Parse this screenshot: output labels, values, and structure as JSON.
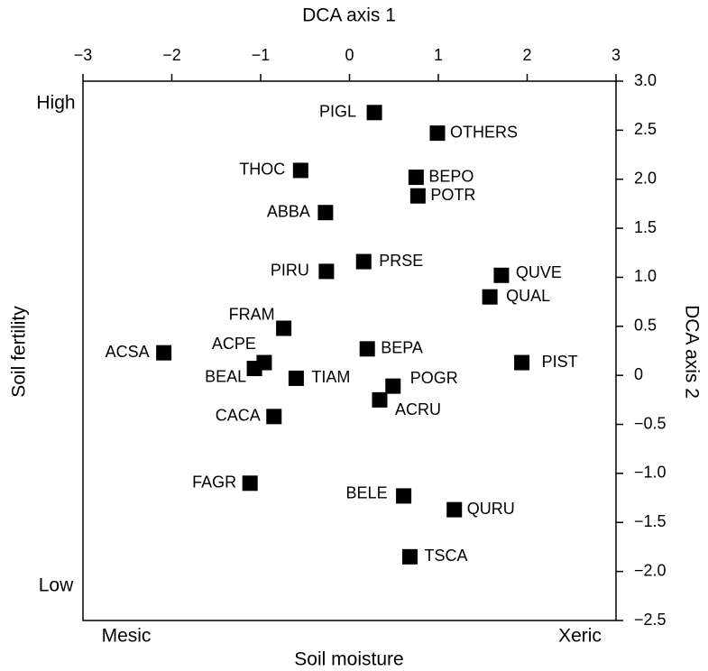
{
  "chart_data": {
    "type": "scatter",
    "top_axis_label": "DCA axis 1",
    "right_axis_label": "DCA axis 2",
    "left_axis_label": "Soil fertility",
    "bottom_axis_label": "Soil moisture",
    "left_top_annotation": "High",
    "left_bottom_annotation": "Low",
    "bottom_left_annotation": "Mesic",
    "bottom_right_annotation": "Xeric",
    "color": "#000000",
    "labels": [
      "PIGL",
      "OTHERS",
      "THOC",
      "BEPO",
      "POTR",
      "ABBA",
      "PRSE",
      "PIRU",
      "QUVE",
      "QUAL",
      "FRAM",
      "BEPA",
      "ACSA",
      "ACPE",
      "PIST",
      "BEAL",
      "TIAM",
      "POGR",
      "ACRU",
      "CACA",
      "FAGR",
      "BELE",
      "QURU",
      "TSCA"
    ],
    "x": [
      0.28,
      0.99,
      -0.55,
      0.75,
      0.77,
      -0.27,
      0.16,
      -0.26,
      1.71,
      1.58,
      -0.74,
      0.2,
      -2.09,
      -0.96,
      1.94,
      -1.07,
      -0.6,
      0.49,
      0.34,
      -0.85,
      -1.12,
      0.61,
      1.18,
      0.68
    ],
    "values": [
      2.68,
      2.47,
      2.09,
      2.02,
      1.83,
      1.66,
      1.16,
      1.06,
      1.02,
      0.8,
      0.48,
      0.27,
      0.23,
      0.13,
      0.13,
      0.07,
      -0.03,
      -0.11,
      -0.25,
      -0.42,
      -1.1,
      -1.23,
      -1.37,
      -1.85
    ],
    "xlim": [
      -3,
      3
    ],
    "xticks": [
      {
        "value": -3,
        "label": "−3"
      },
      {
        "value": -2,
        "label": "−2"
      },
      {
        "value": -1,
        "label": "−1"
      },
      0,
      1,
      2,
      3
    ],
    "ylim": [
      -2.5,
      3.0
    ],
    "yticks": [
      {
        "value": 3.0,
        "label": "3.0"
      },
      {
        "value": 2.5,
        "label": "2.5"
      },
      {
        "value": 2.0,
        "label": "2.0"
      },
      {
        "value": 1.5,
        "label": "1.5"
      },
      {
        "value": 1.0,
        "label": "1.0"
      },
      {
        "value": 0.5,
        "label": "0.5"
      },
      0,
      {
        "value": -0.5,
        "label": "−0.5"
      },
      {
        "value": -1.0,
        "label": "−1.0"
      },
      {
        "value": -1.5,
        "label": "−1.5"
      },
      {
        "value": -2.0,
        "label": "−2.0"
      },
      {
        "value": -2.5,
        "label": "−2.5"
      }
    ]
  }
}
